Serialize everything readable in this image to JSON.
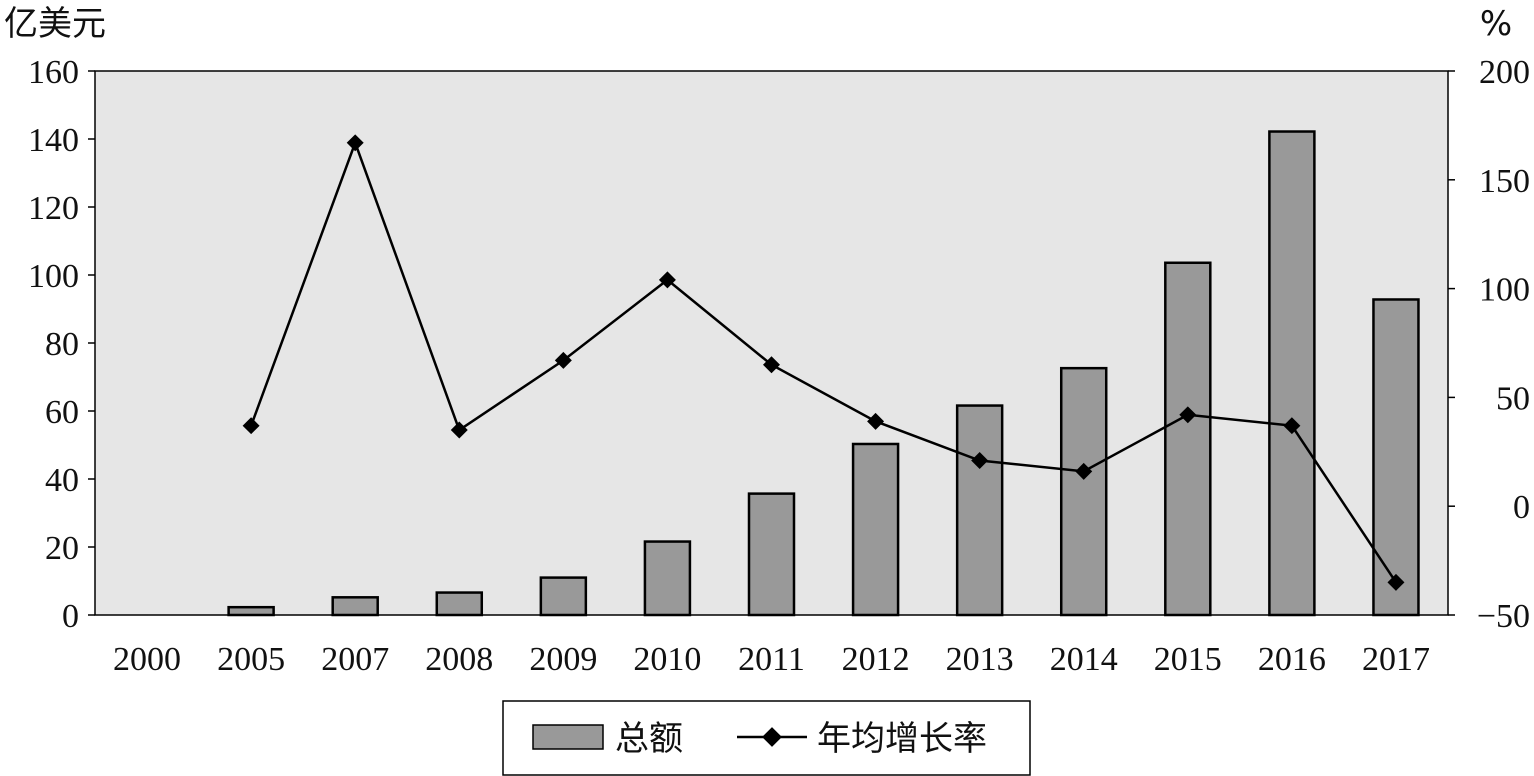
{
  "chart_data": {
    "type": "bar",
    "categories": [
      "2000",
      "2005",
      "2007",
      "2008",
      "2009",
      "2010",
      "2011",
      "2012",
      "2013",
      "2014",
      "2015",
      "2016",
      "2017"
    ],
    "y_left_label": "亿美元",
    "y_right_label": "%",
    "ylim_left": [
      0,
      160
    ],
    "ylim_right": [
      -50,
      200
    ],
    "yticks_left": [
      "0",
      "20",
      "40",
      "60",
      "80",
      "100",
      "120",
      "140",
      "160"
    ],
    "yticks_right": [
      "−50",
      "0",
      "50",
      "100",
      "150",
      "200"
    ],
    "series": [
      {
        "name": "总额",
        "kind": "bar",
        "axis": "left",
        "values": [
          0,
          2.3,
          5.2,
          6.6,
          11,
          21.6,
          35.7,
          50.3,
          61.6,
          72.6,
          103.6,
          142.2,
          92.8
        ]
      },
      {
        "name": "年均增长率",
        "kind": "line",
        "axis": "right",
        "values": [
          null,
          37,
          167,
          35,
          67,
          104,
          65,
          39,
          21,
          16,
          42,
          37,
          -35
        ]
      }
    ],
    "grid": false,
    "legend_position": "bottom-center",
    "colors": {
      "bar_fill": "#999999",
      "plot_bg": "#e6e6e6",
      "line": "#000000"
    }
  }
}
